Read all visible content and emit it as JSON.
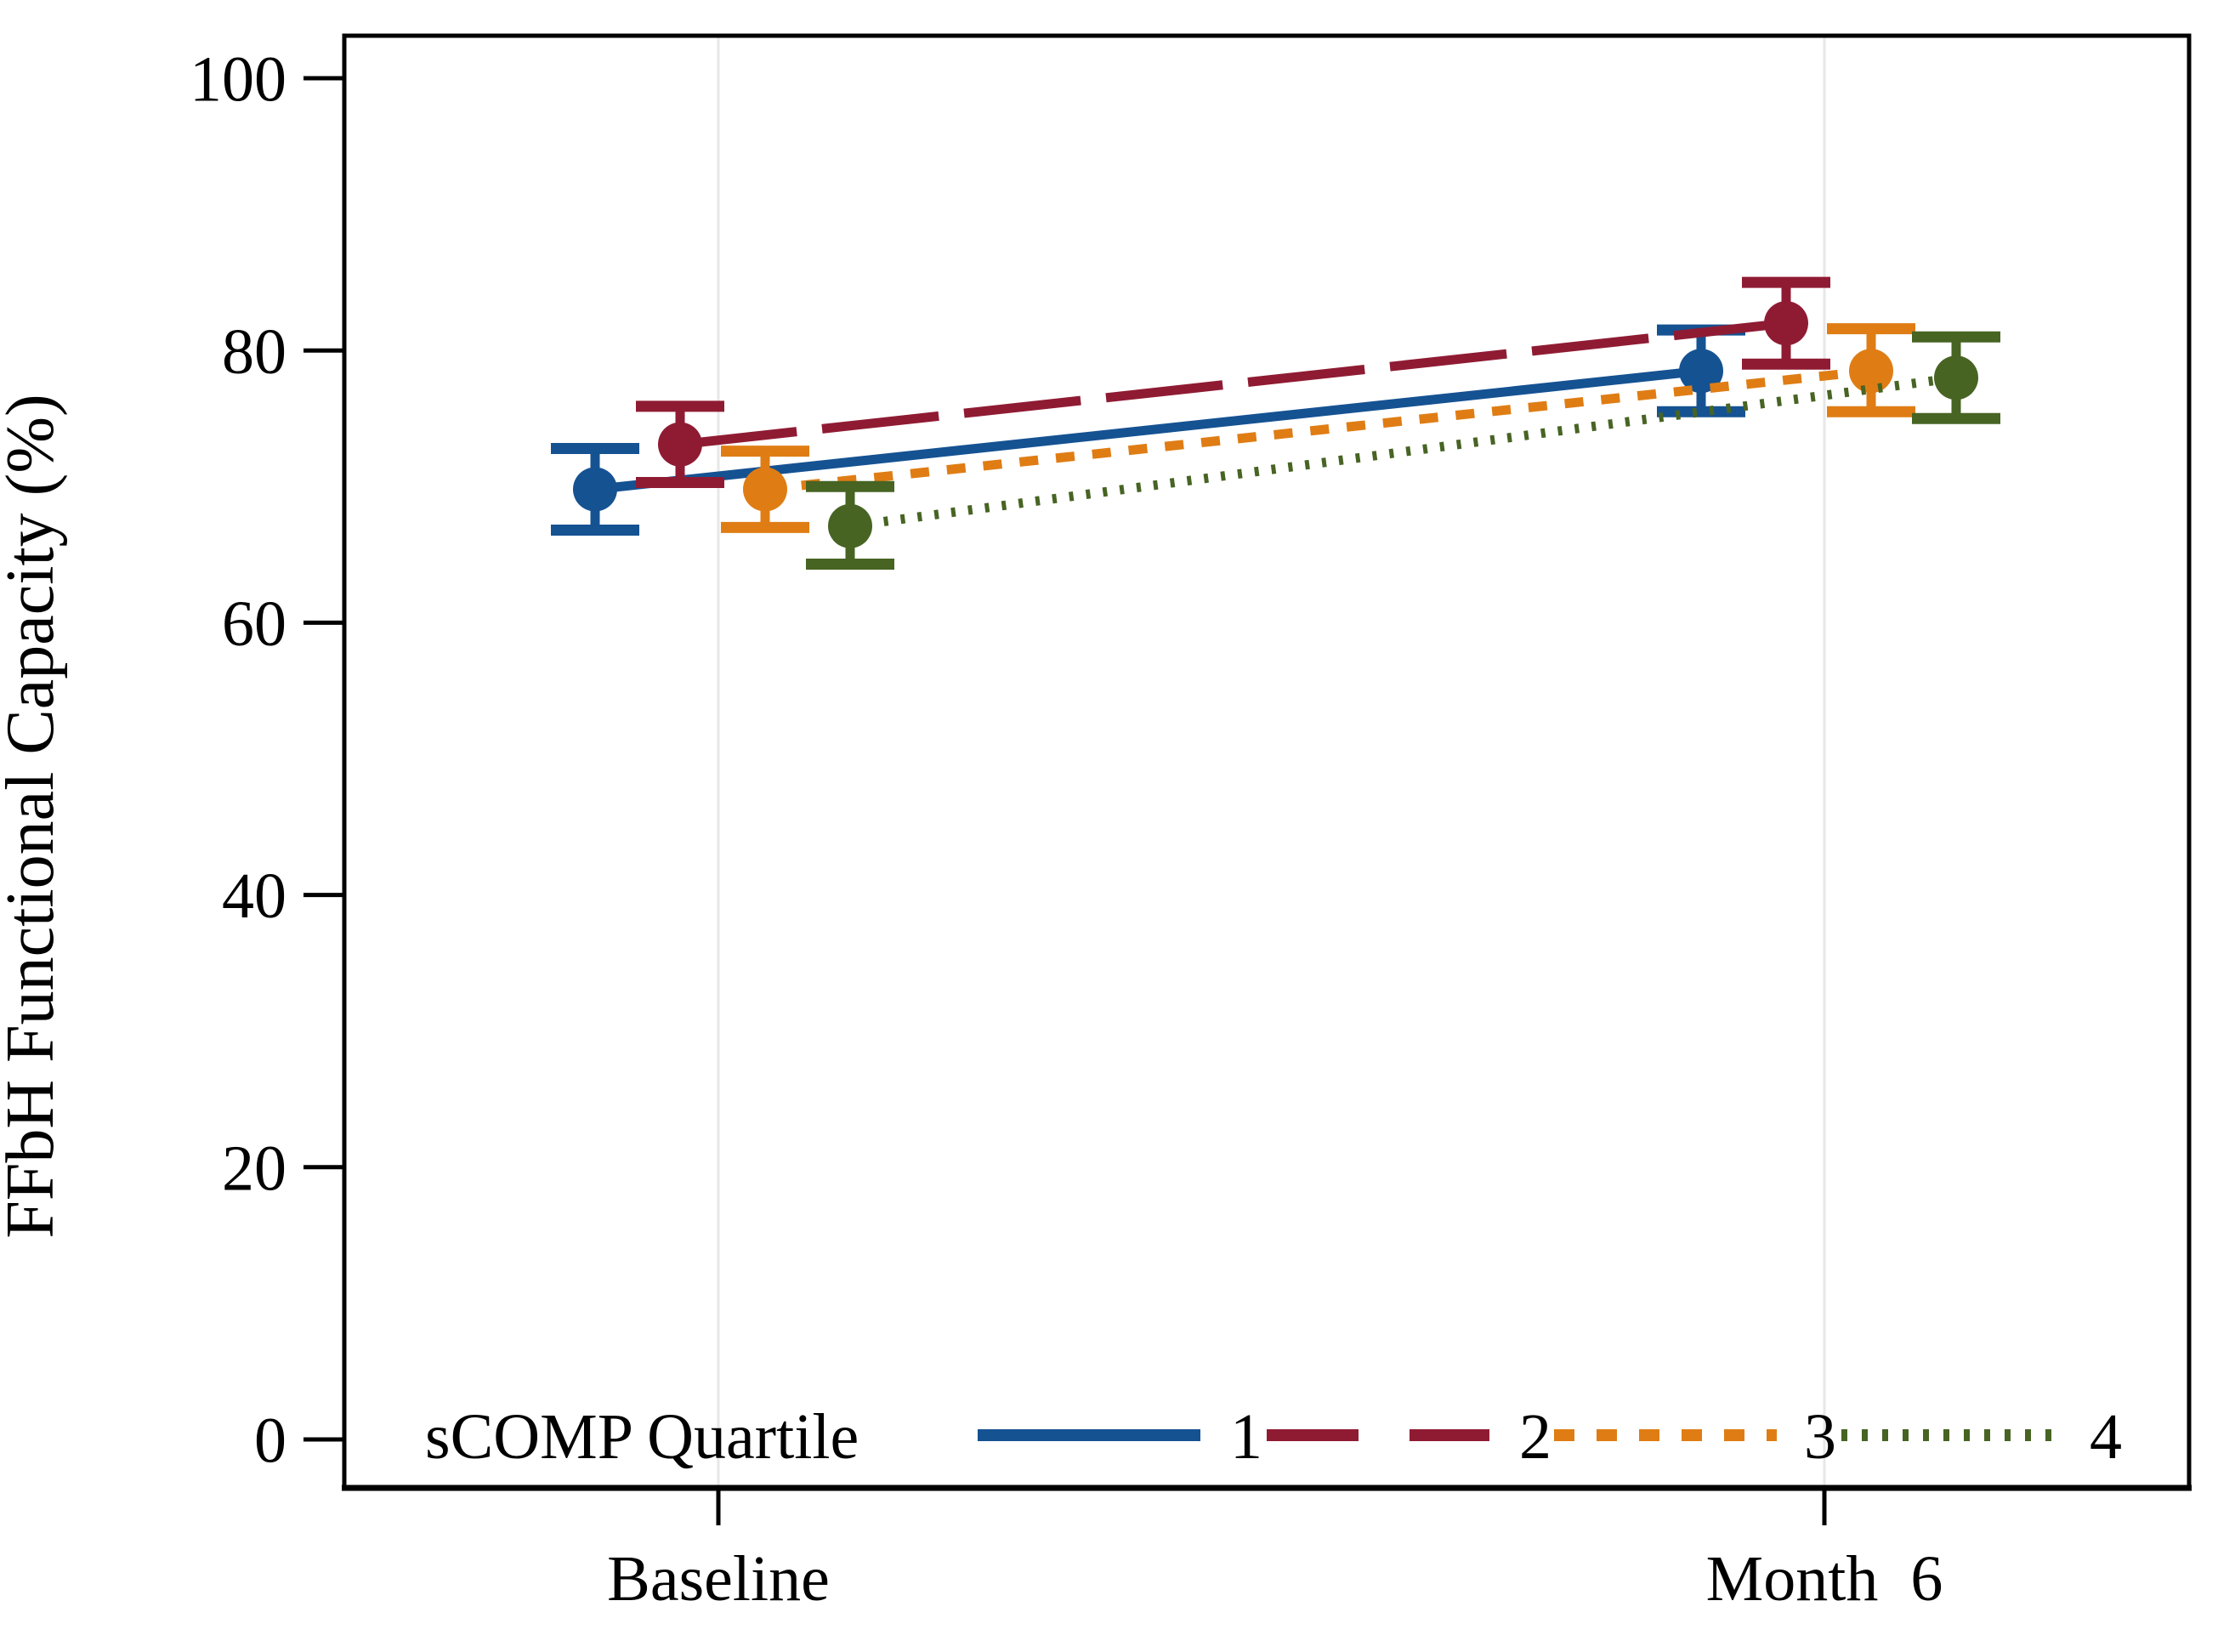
{
  "figure": {
    "background": "#ffffff",
    "border_color": "#000000",
    "gridline_color": "#e7e7e7"
  },
  "y_axis": {
    "title": "FFbH Functional Capacity (%)",
    "tick_labels": [
      "0",
      "20",
      "40",
      "60",
      "80",
      "100"
    ]
  },
  "x_axis": {
    "display_labels": [
      "Baseline",
      "Month  6"
    ]
  },
  "legend": {
    "title": "sCOMP Quartile",
    "entries": [
      "1",
      "2",
      "3",
      "4"
    ]
  },
  "chart_data": {
    "type": "line",
    "title": "",
    "xlabel": "",
    "ylabel": "FFbH Functional Capacity (%)",
    "x_categories": [
      "Baseline",
      "Month 6"
    ],
    "ylim": [
      0,
      100
    ],
    "y_ticks": [
      0,
      20,
      40,
      60,
      80,
      100
    ],
    "grid": "vertical-only",
    "legend_title": "sCOMP Quartile",
    "legend_position": "bottom-inside",
    "error_bars": true,
    "series": [
      {
        "name": "1",
        "legend_label": "1",
        "color": "#155292",
        "line_style": "solid",
        "values": [
          {
            "x": "Baseline",
            "y": 69.8,
            "ci_low": 66.8,
            "ci_high": 72.8
          },
          {
            "x": "Month 6",
            "y": 78.5,
            "ci_low": 75.5,
            "ci_high": 81.5
          }
        ]
      },
      {
        "name": "2",
        "legend_label": "2",
        "color": "#8f1b33",
        "line_style": "long-dash",
        "values": [
          {
            "x": "Baseline",
            "y": 73.1,
            "ci_low": 70.3,
            "ci_high": 75.9
          },
          {
            "x": "Month 6",
            "y": 82.0,
            "ci_low": 79.0,
            "ci_high": 85.0
          }
        ]
      },
      {
        "name": "3",
        "legend_label": "3",
        "color": "#df7d14",
        "line_style": "short-dash",
        "values": [
          {
            "x": "Baseline",
            "y": 69.8,
            "ci_low": 67.0,
            "ci_high": 72.6
          },
          {
            "x": "Month 6",
            "y": 78.5,
            "ci_low": 75.5,
            "ci_high": 81.6
          }
        ]
      },
      {
        "name": "4",
        "legend_label": "4",
        "color": "#476423",
        "line_style": "dotted",
        "values": [
          {
            "x": "Baseline",
            "y": 67.1,
            "ci_low": 64.3,
            "ci_high": 70.0
          },
          {
            "x": "Month 6",
            "y": 78.0,
            "ci_low": 75.0,
            "ci_high": 81.0
          }
        ]
      }
    ]
  }
}
